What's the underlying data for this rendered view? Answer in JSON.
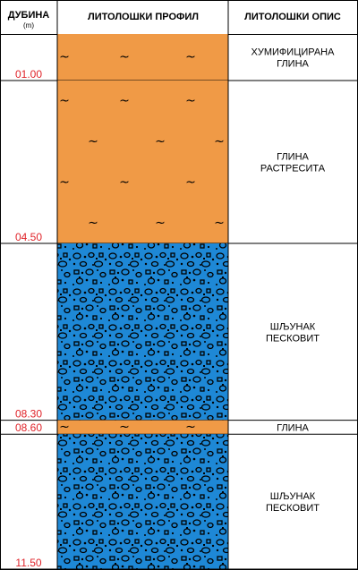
{
  "header": {
    "depth_title": "ДУБИНА",
    "depth_unit": "(m)",
    "profile_title": "ЛИТОЛОШКИ ПРОФИЛ",
    "description_title": "ЛИТОЛОШКИ ОПИС"
  },
  "colors": {
    "clay": "#f09a46",
    "gravel": "#1e88d6",
    "depth_label": "#e0242a",
    "line": "#000000"
  },
  "layers": [
    {
      "from": 0.0,
      "to": 1.0,
      "type": "clay",
      "description": [
        "ХУМИФИЦИРАНА",
        "ГЛИНА"
      ],
      "depth_label": "01.00"
    },
    {
      "from": 1.0,
      "to": 4.5,
      "type": "clay",
      "description": [
        "ГЛИНА",
        "РАСТРЕСИТА"
      ],
      "depth_label": "04.50"
    },
    {
      "from": 4.5,
      "to": 8.3,
      "type": "gravel",
      "description": [
        "ШЉУНАК",
        "ПЕСКОВИТ"
      ],
      "depth_label": "08.30"
    },
    {
      "from": 8.3,
      "to": 8.6,
      "type": "clay",
      "description": [
        "ГЛИНА"
      ],
      "depth_label": "08.60"
    },
    {
      "from": 8.6,
      "to": 11.5,
      "type": "gravel",
      "description": [
        "ШЉУНАК",
        "ПЕСКОВИТ"
      ],
      "depth_label": "11.50"
    }
  ]
}
